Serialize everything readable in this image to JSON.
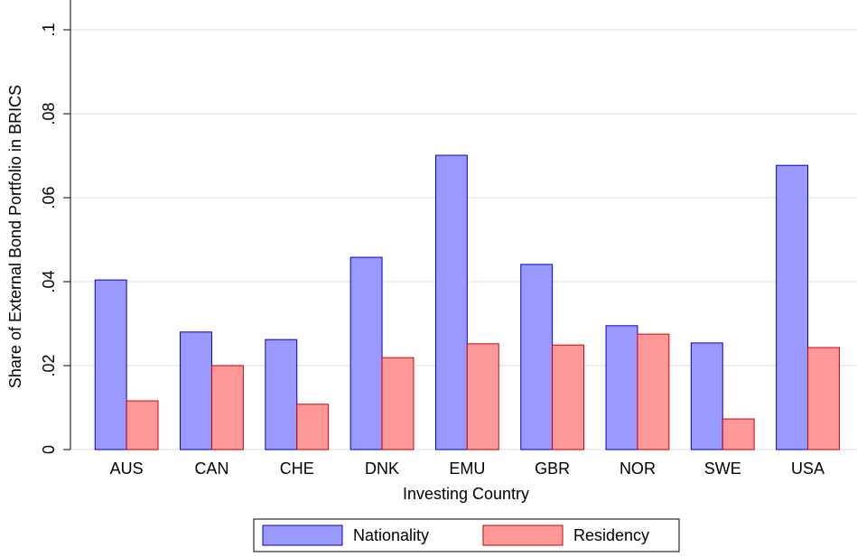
{
  "chart_data": {
    "type": "bar",
    "y_label": "Share of External Bond Portfolio in BRICS",
    "x_label": "Investing Country",
    "categories": [
      "AUS",
      "CAN",
      "CHE",
      "DNK",
      "EMU",
      "GBR",
      "NOR",
      "SWE",
      "USA"
    ],
    "series": [
      {
        "name": "Nationality",
        "color": "#9999ff",
        "values": [
          0.0404,
          0.028,
          0.0262,
          0.0458,
          0.0701,
          0.0441,
          0.0295,
          0.0254,
          0.0677
        ]
      },
      {
        "name": "Residency",
        "color": "#ff9999",
        "values": [
          0.0116,
          0.02,
          0.0108,
          0.0219,
          0.0252,
          0.0249,
          0.0275,
          0.0073,
          0.0243
        ]
      }
    ],
    "ylim": [
      0,
      0.1
    ],
    "yticks": [
      0,
      {
        "value": 0.02,
        "label": ".02"
      },
      {
        "value": 0.04,
        "label": ".04"
      },
      {
        "value": 0.06,
        "label": ".06"
      },
      {
        "value": 0.08,
        "label": ".08"
      },
      {
        "value": 0.1,
        "label": ".1"
      }
    ],
    "grid": true,
    "legend": "bottom"
  }
}
